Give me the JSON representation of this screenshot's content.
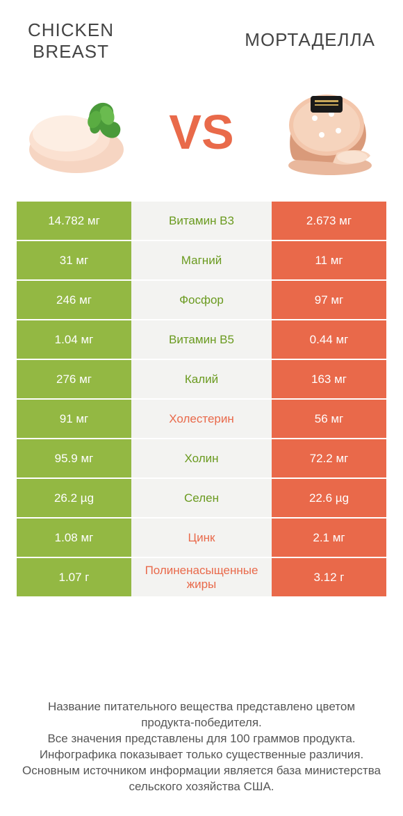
{
  "colors": {
    "green": "#93b843",
    "orange": "#e9694a",
    "mid_bg": "#f3f3f1",
    "green_text": "#6a9a1f",
    "orange_text": "#e9694a",
    "vs": "#e9694a"
  },
  "header": {
    "left_title": "CHICKEN\nBREAST",
    "right_title": "МОРТАДЕЛЛА",
    "vs_label": "VS"
  },
  "rows": [
    {
      "left": "14.782 мг",
      "mid": "Витамин B3",
      "right": "2.673 мг",
      "winner": "left"
    },
    {
      "left": "31 мг",
      "mid": "Магний",
      "right": "11 мг",
      "winner": "left"
    },
    {
      "left": "246 мг",
      "mid": "Фосфор",
      "right": "97 мг",
      "winner": "left"
    },
    {
      "left": "1.04 мг",
      "mid": "Витамин B5",
      "right": "0.44 мг",
      "winner": "left"
    },
    {
      "left": "276 мг",
      "mid": "Калий",
      "right": "163 мг",
      "winner": "left"
    },
    {
      "left": "91 мг",
      "mid": "Холестерин",
      "right": "56 мг",
      "winner": "right"
    },
    {
      "left": "95.9 мг",
      "mid": "Холин",
      "right": "72.2 мг",
      "winner": "left"
    },
    {
      "left": "26.2 µg",
      "mid": "Селен",
      "right": "22.6 µg",
      "winner": "left"
    },
    {
      "left": "1.08 мг",
      "mid": "Цинк",
      "right": "2.1 мг",
      "winner": "right"
    },
    {
      "left": "1.07 г",
      "mid": "Полиненасыщенные жиры",
      "right": "3.12 г",
      "winner": "right"
    }
  ],
  "footer": {
    "line1": "Название питательного вещества представлено цветом продукта-победителя.",
    "line2": "Все значения представлены для 100 граммов продукта.",
    "line3": "Инфографика показывает только существенные различия.",
    "line4": "Основным источником информации является база министерства сельского хозяйства США."
  }
}
